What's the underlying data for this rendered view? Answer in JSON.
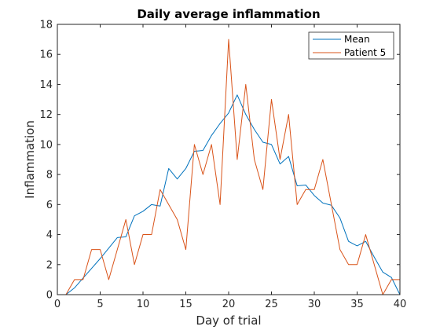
{
  "chart_data": {
    "type": "line",
    "title": "Daily average inflammation",
    "xlabel": "Day of trial",
    "ylabel": "Inflammation",
    "xlim": [
      0,
      40
    ],
    "ylim": [
      0,
      18
    ],
    "xticks": [
      0,
      5,
      10,
      15,
      20,
      25,
      30,
      35,
      40
    ],
    "yticks": [
      0,
      2,
      4,
      6,
      8,
      10,
      12,
      14,
      16,
      18
    ],
    "grid": false,
    "legend_position": "top-right",
    "x": [
      1,
      2,
      3,
      4,
      5,
      6,
      7,
      8,
      9,
      10,
      11,
      12,
      13,
      14,
      15,
      16,
      17,
      18,
      19,
      20,
      21,
      22,
      23,
      24,
      25,
      26,
      27,
      28,
      29,
      30,
      31,
      32,
      33,
      34,
      35,
      36,
      37,
      38,
      39,
      40
    ],
    "series": [
      {
        "name": "Mean",
        "color": "#0072bd",
        "values": [
          0.0,
          0.45,
          1.1,
          1.75,
          2.4,
          3.1,
          3.8,
          3.85,
          5.25,
          5.55,
          6.0,
          5.9,
          8.4,
          7.7,
          8.4,
          9.55,
          9.6,
          10.6,
          11.4,
          12.1,
          13.3,
          12.0,
          11.0,
          10.15,
          10.0,
          8.7,
          9.2,
          7.25,
          7.3,
          6.6,
          6.1,
          5.95,
          5.1,
          3.55,
          3.25,
          3.55,
          2.5,
          1.5,
          1.15,
          0.0
        ]
      },
      {
        "name": "Patient 5",
        "color": "#d95319",
        "values": [
          0,
          1,
          1,
          3,
          3,
          1,
          3,
          5,
          2,
          4,
          4,
          7,
          6,
          5,
          3,
          10,
          8,
          10,
          6,
          17,
          9,
          14,
          9,
          7,
          13,
          9,
          12,
          6,
          7,
          7,
          9,
          6,
          3,
          2,
          2,
          4,
          2,
          0,
          1,
          1
        ]
      }
    ]
  }
}
